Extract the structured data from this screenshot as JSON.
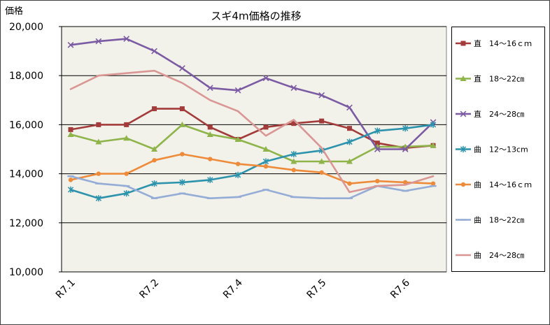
{
  "chart_data": {
    "type": "line",
    "title": "スギ4m価格の推移",
    "xlabel": "",
    "ylabel": "価格",
    "ylim": [
      10000,
      20000
    ],
    "yticks": [
      10000,
      12000,
      14000,
      16000,
      18000,
      20000
    ],
    "ytick_labels": [
      "10,000",
      "12,000",
      "14,000",
      "16,000",
      "18,000",
      "20,000"
    ],
    "categories": [
      "R7.1",
      "",
      "",
      "R7.2",
      "",
      "",
      "R7.4",
      "",
      "",
      "R7.5",
      "",
      "",
      "R7.6",
      ""
    ],
    "grid": true,
    "legend": "right",
    "plot_background": "#F2F2EA",
    "series": [
      {
        "name": "直　14～16ｃｍ",
        "color": "#A23B3A",
        "marker": "square",
        "values": [
          15800,
          16000,
          16000,
          16650,
          16650,
          15900,
          15400,
          15900,
          16050,
          16150,
          15850,
          15250,
          15050,
          15150
        ]
      },
      {
        "name": "直　18～22㎝",
        "color": "#8EB44A",
        "marker": "triangle",
        "values": [
          15600,
          15300,
          15450,
          15000,
          16000,
          15600,
          15400,
          15000,
          14500,
          14500,
          14500,
          15100,
          15100,
          15150
        ]
      },
      {
        "name": "直　24～28㎝",
        "color": "#7B5BA3",
        "marker": "x",
        "values": [
          19250,
          19400,
          19500,
          19000,
          18300,
          17500,
          17400,
          17900,
          17500,
          17200,
          16700,
          15000,
          15000,
          16100
        ]
      },
      {
        "name": "曲　12～13cm",
        "color": "#2D93AD",
        "marker": "star",
        "values": [
          13350,
          13000,
          13200,
          13600,
          13650,
          13750,
          13950,
          14500,
          14800,
          14950,
          15300,
          15750,
          15850,
          16000
        ]
      },
      {
        "name": "曲　14～16ｃｍ",
        "color": "#EE8B3A",
        "marker": "circle",
        "values": [
          13750,
          14000,
          14000,
          14550,
          14800,
          14600,
          14400,
          14300,
          14150,
          14050,
          13600,
          13700,
          13650,
          13600
        ]
      },
      {
        "name": "曲　18～22㎝",
        "color": "#94ACD6",
        "marker": "dash",
        "values": [
          13900,
          13600,
          13500,
          13000,
          13200,
          13000,
          13050,
          13350,
          13050,
          13000,
          13000,
          13500,
          13300,
          13500
        ]
      },
      {
        "name": "曲　24～28㎝",
        "color": "#DA9694",
        "marker": "none",
        "values": [
          17450,
          18000,
          18100,
          18200,
          17700,
          17000,
          16550,
          15550,
          16200,
          15050,
          13250,
          13500,
          13550,
          13900
        ]
      }
    ]
  }
}
